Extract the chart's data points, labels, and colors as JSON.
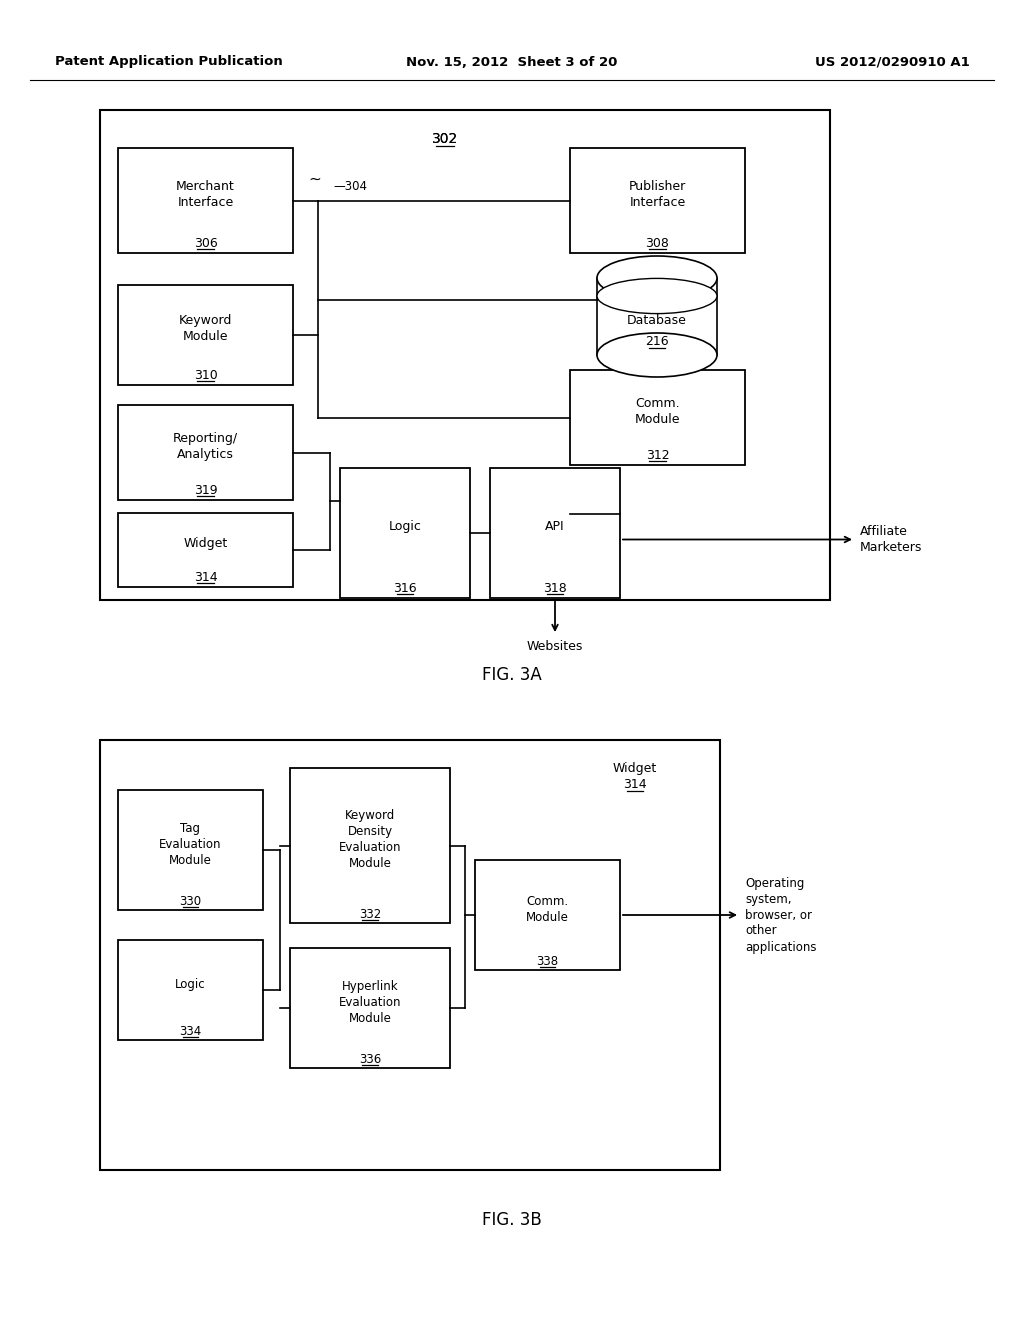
{
  "header_left": "Patent Application Publication",
  "header_mid": "Nov. 15, 2012  Sheet 3 of 20",
  "header_right": "US 2012/0290910 A1",
  "bg_color": "#ffffff",
  "line_color": "#000000",
  "text_color": "#000000"
}
